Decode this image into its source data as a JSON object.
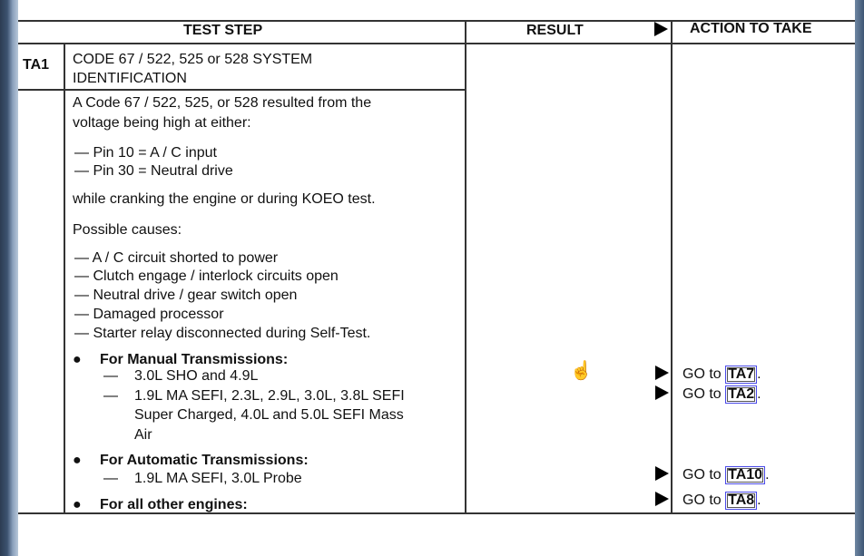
{
  "header": {
    "test_step": "TEST STEP",
    "result": "RESULT",
    "action": "ACTION TO TAKE"
  },
  "step": {
    "id": "TA1",
    "title_lines": [
      "CODE 67 / 522, 525 or 528 SYSTEM",
      "IDENTIFICATION"
    ]
  },
  "body": {
    "intro": [
      "A Code 67 / 522, 525, or 528 resulted from the",
      "voltage being high at either:"
    ],
    "pins": [
      "—  Pin 10 = A / C input",
      "—  Pin 30 = Neutral drive"
    ],
    "while": "while cranking the engine or during KOEO test.",
    "causes_label": "Possible causes:",
    "causes": [
      "—  A / C circuit shorted to power",
      "—  Clutch engage / interlock circuits open",
      "—  Neutral drive / gear switch open",
      "—  Damaged processor",
      "—  Starter relay disconnected during Self-Test."
    ],
    "manual_label": "For Manual Transmissions:",
    "manual": [
      "—",
      "3.0L SHO and 4.9L",
      "—",
      "1.9L MA SEFI, 2.3L, 2.9L, 3.0L, 3.8L SEFI",
      "Super Charged, 4.0L and 5.0L SEFI Mass",
      "Air"
    ],
    "auto_label": "For Automatic Transmissions:",
    "auto": [
      "—",
      "1.9L MA SEFI, 3.0L Probe"
    ],
    "other_label": "For all other engines:"
  },
  "actions": [
    {
      "prefix": "GO to ",
      "link": "TA7",
      "suffix": "."
    },
    {
      "prefix": "GO to ",
      "link": "TA2",
      "suffix": "."
    },
    {
      "prefix": "GO to ",
      "link": "TA10",
      "suffix": "."
    },
    {
      "prefix": "GO to ",
      "link": "TA8",
      "suffix": "."
    }
  ],
  "icons": {
    "cursor": "hand-pointer-icon",
    "bullet": "●",
    "arrow": "right-triangle-icon"
  }
}
